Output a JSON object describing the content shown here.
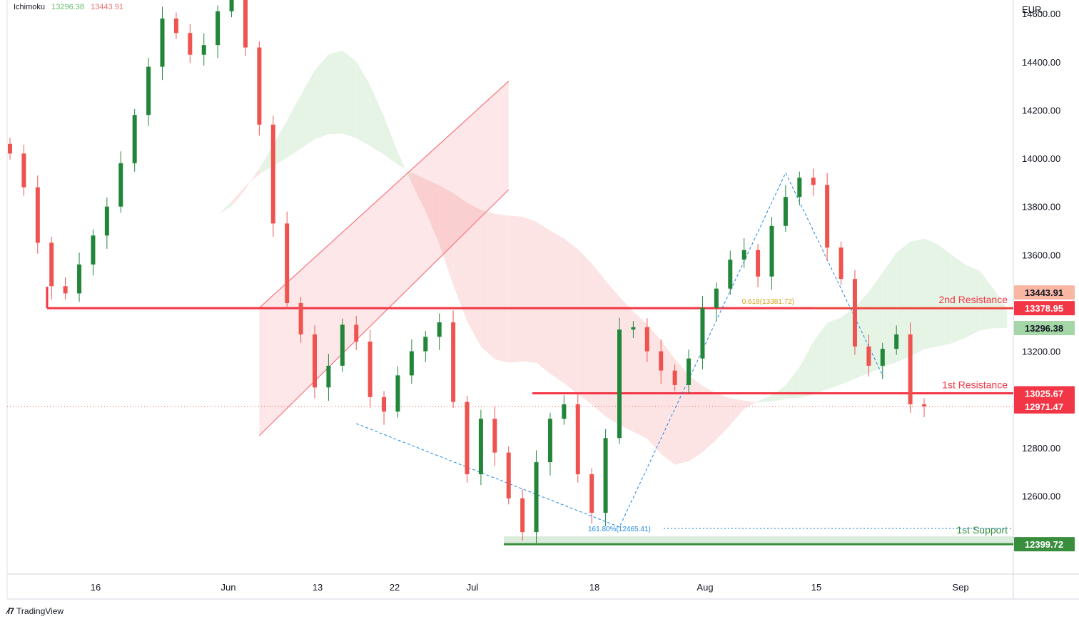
{
  "indicator": {
    "name": "Ichimoku",
    "value1": "13296.38",
    "value2": "13443.91"
  },
  "currency": "EUR",
  "branding": "TradingView",
  "colors": {
    "bull": "#22863a",
    "bear": "#ef5350",
    "resistance": "#f23645",
    "support": "#388e3c",
    "cloud_bull": "#e6f4e6",
    "cloud_bear": "#fde4e4",
    "fib_blue": "#1e88e5",
    "fib_gold": "#d4a017"
  },
  "chart_data": {
    "type": "candlestick",
    "ylim": [
      12270,
      14780
    ],
    "y_ticks": [
      "14600.00",
      "14400.00",
      "14200.00",
      "14000.00",
      "13800.00",
      "13600.00",
      "13200.00",
      "12800.00",
      "12600.00"
    ],
    "x_ticks": [
      "16",
      "Jun",
      "13",
      "22",
      "Jul",
      "18",
      "Aug",
      "15",
      "Sep"
    ],
    "price_badges": [
      {
        "label": "13443.91",
        "value": 13443.91,
        "style": "cloud_bear"
      },
      {
        "label": "13378.95",
        "value": 13378.95,
        "style": "resistance"
      },
      {
        "label": "13296.38",
        "value": 13296.38,
        "style": "cloud_bull"
      },
      {
        "label": "13025.67",
        "value": 13025.67,
        "style": "resistance"
      },
      {
        "label": "12971.47",
        "value": 12971.47,
        "style": "resistance"
      },
      {
        "label": "12399.72",
        "value": 12399.72,
        "style": "support"
      }
    ],
    "levels": [
      {
        "label": "2nd Resistance",
        "value": 13378.95,
        "kind": "resistance"
      },
      {
        "label": "1st Resistance",
        "value": 13025.67,
        "kind": "resistance"
      },
      {
        "label": "1st Support",
        "value": 12399.72,
        "kind": "support"
      }
    ],
    "fib_labels": [
      {
        "label": "0.618(13381.72)",
        "value": 13381.72
      },
      {
        "label": "161.80%(12465.41)",
        "value": 12465.41
      }
    ],
    "closes": [
      14020,
      13880,
      13650,
      13470,
      13440,
      13560,
      13680,
      13800,
      13980,
      14180,
      14380,
      14580,
      14520,
      14430,
      14470,
      14610,
      14700,
      14460,
      14140,
      13730,
      13400,
      13270,
      13050,
      13140,
      13310,
      13240,
      13010,
      12950,
      13100,
      13200,
      13260,
      13320,
      12990,
      12690,
      12920,
      12780,
      12590,
      12450,
      12740,
      12920,
      12980,
      12690,
      12530,
      12840,
      13290,
      13300,
      13200,
      13120,
      13060,
      13170,
      13380,
      13460,
      13580,
      13620,
      13510,
      13720,
      13840,
      13920,
      13890,
      13630,
      13500,
      13220,
      13140,
      13210,
      13270,
      12980,
      12971.47
    ],
    "channel_upper": [
      [
        18,
        13380
      ],
      [
        36,
        14320
      ]
    ],
    "channel_lower": [
      [
        18,
        12850
      ],
      [
        36,
        13870
      ]
    ]
  }
}
